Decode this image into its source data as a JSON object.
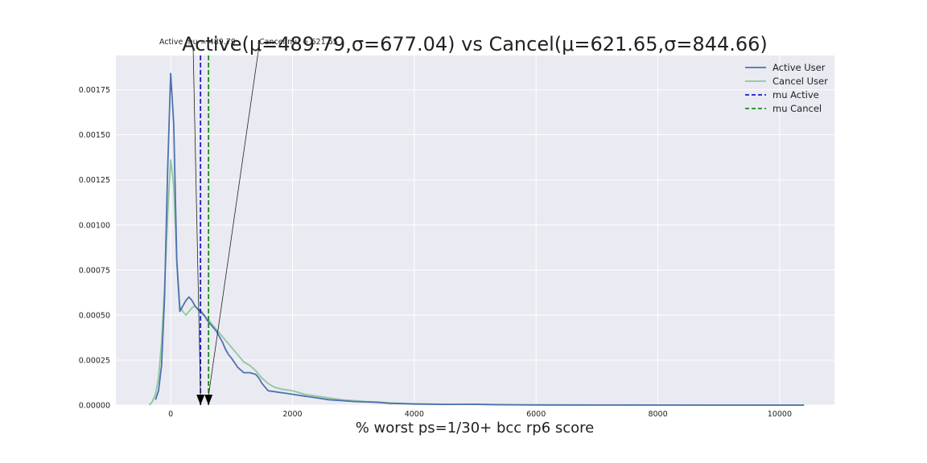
{
  "chart_data": {
    "type": "line",
    "title": "Active(μ=489.79,σ=677.04) vs Cancel(μ=621.65,σ=844.66)",
    "xlabel": "% worst ps=1/30+ bcc rp6 score",
    "ylabel": "",
    "xlim": [
      -900,
      10900
    ],
    "ylim": [
      0,
      0.00194
    ],
    "grid": true,
    "legend_position": "top-right",
    "xticks": [
      "0",
      "2000",
      "4000",
      "6000",
      "8000",
      "10000"
    ],
    "yticks": [
      "0.00000",
      "0.00025",
      "0.00050",
      "0.00075",
      "0.00100",
      "0.00125",
      "0.00150",
      "0.00175"
    ],
    "series": [
      {
        "name": "Active User",
        "color": "#4c72b0",
        "style": "solid",
        "x": [
          -250,
          -200,
          -150,
          -100,
          -50,
          0,
          50,
          100,
          150,
          200,
          250,
          300,
          350,
          400,
          450,
          500,
          550,
          600,
          650,
          700,
          750,
          800,
          850,
          900,
          950,
          1000,
          1100,
          1200,
          1300,
          1400,
          1450,
          1500,
          1600,
          1700,
          1800,
          1900,
          2000,
          2200,
          2400,
          2600,
          2800,
          3000,
          3200,
          3400,
          3600,
          3800,
          4000,
          4500,
          5000,
          5200,
          5500,
          6000,
          7000,
          8000,
          9000,
          10000,
          10400
        ],
        "y": [
          3e-05,
          8e-05,
          0.00022,
          0.0006,
          0.0013,
          0.00184,
          0.00156,
          0.0008,
          0.00052,
          0.00055,
          0.00058,
          0.0006,
          0.00058,
          0.00055,
          0.00053,
          0.00052,
          0.0005,
          0.00047,
          0.00045,
          0.00043,
          0.00041,
          0.00038,
          0.00035,
          0.00031,
          0.00028,
          0.00026,
          0.00021,
          0.00018,
          0.00018,
          0.00017,
          0.00015,
          0.00012,
          8e-05,
          7.5e-05,
          7e-05,
          6.5e-05,
          6e-05,
          5e-05,
          4e-05,
          3e-05,
          2.5e-05,
          2e-05,
          1.8e-05,
          1.5e-05,
          1e-05,
          8e-06,
          6e-06,
          4e-06,
          5e-06,
          3e-06,
          2e-06,
          1e-06,
          5e-07,
          3e-07,
          2e-07,
          1e-07,
          0.0
        ]
      },
      {
        "name": "Cancel User",
        "color": "#8fc79b",
        "style": "solid",
        "x": [
          -350,
          -300,
          -250,
          -200,
          -150,
          -100,
          -50,
          0,
          50,
          100,
          150,
          200,
          250,
          300,
          350,
          400,
          450,
          500,
          600,
          700,
          800,
          900,
          1000,
          1100,
          1200,
          1300,
          1400,
          1500,
          1600,
          1700,
          1800,
          2000,
          2200,
          2400,
          2600,
          2800,
          3000,
          3200,
          3400,
          3600,
          3800,
          4000,
          4500,
          5000,
          5500,
          6000,
          7000,
          8000,
          9000,
          10000,
          10400
        ],
        "y": [
          0.0,
          2e-05,
          6e-05,
          0.00015,
          0.00035,
          0.00065,
          0.00105,
          0.00136,
          0.00122,
          0.0008,
          0.00055,
          0.00052,
          0.0005,
          0.00052,
          0.00054,
          0.00055,
          0.00053,
          0.00051,
          0.00048,
          0.00044,
          0.0004,
          0.00036,
          0.00032,
          0.00028,
          0.00024,
          0.00022,
          0.00019,
          0.00015,
          0.00012,
          0.0001,
          9e-05,
          8e-05,
          6e-05,
          5e-05,
          4e-05,
          3e-05,
          2.5e-05,
          2e-05,
          1.8e-05,
          1.2e-05,
          1e-05,
          8e-06,
          5e-06,
          4e-06,
          3e-06,
          2e-06,
          1e-06,
          5e-07,
          3e-07,
          2e-07,
          0.0
        ]
      }
    ],
    "vlines": [
      {
        "name": "mu Active",
        "x": 489.79,
        "color": "#1a1acc",
        "style": "dashed"
      },
      {
        "name": "mu Cancel",
        "x": 621.65,
        "color": "#1a8c1a",
        "style": "dashed"
      }
    ],
    "annotations": [
      {
        "text": "Active mu = 489.79",
        "target_x": 489.79,
        "target_y": 0.0
      },
      {
        "text": "Cancel mu = 621.65",
        "target_x": 621.65,
        "target_y": 0.0
      }
    ],
    "legend": [
      {
        "label": "Active User",
        "color": "#4c72b0",
        "style": "solid"
      },
      {
        "label": "Cancel User",
        "color": "#8fc79b",
        "style": "solid"
      },
      {
        "label": "mu Active",
        "color": "#1a1acc",
        "style": "dashed"
      },
      {
        "label": "mu Cancel",
        "color": "#1a8c1a",
        "style": "dashed"
      }
    ]
  }
}
